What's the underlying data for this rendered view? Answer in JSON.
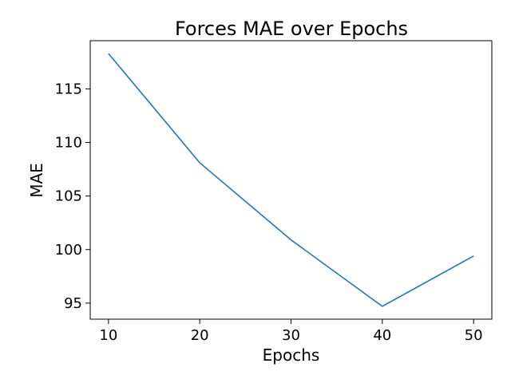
{
  "chart_data": {
    "type": "line",
    "title": "Forces MAE over Epochs",
    "xlabel": "Epochs",
    "ylabel": "MAE",
    "x": [
      10,
      20,
      30,
      40,
      50
    ],
    "series": [
      {
        "values": [
          118.3,
          108.1,
          100.9,
          94.7,
          99.4
        ]
      }
    ],
    "xticks": [
      10,
      20,
      30,
      40,
      50
    ],
    "yticks": [
      95,
      100,
      105,
      110,
      115
    ],
    "xlim": [
      8,
      52
    ],
    "ylim": [
      93.5,
      119.5
    ],
    "grid": false,
    "line_color": "#1f77b4"
  }
}
